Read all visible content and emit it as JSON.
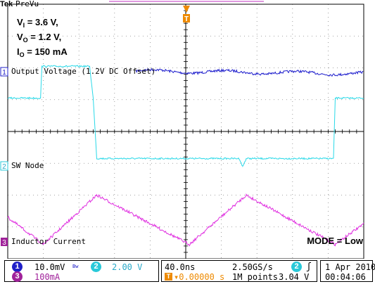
{
  "brand": {
    "logo": "Tek",
    "mode": "PreVu"
  },
  "conditions": {
    "vi": {
      "sym": "V",
      "sub": "I",
      "rest": " = 3.6 V,"
    },
    "vo": {
      "sym": "V",
      "sub": "O",
      "rest": " = 1.2 V,"
    },
    "io": {
      "sym": "I",
      "sub": "O",
      "rest": " = 150 mA"
    }
  },
  "mode_label": "MODE = Low",
  "channel_markers": {
    "ch1": "1",
    "ch2": "2",
    "ch3": "3",
    "trigger": "T"
  },
  "chart_data": {
    "type": "line",
    "grid": true,
    "grid_divisions": {
      "x": 10,
      "y": 8
    },
    "horizontal_scale": "40.0ns/div",
    "series": [
      {
        "name": "Output Voltage (1.2V DC Offset)",
        "channel": "1",
        "color": "#1a1acc",
        "description_values": {
          "level_div": 1.9,
          "ripple_div": 0.15
        }
      },
      {
        "name": "SW Node",
        "channel": "2",
        "color": "#29d9e8",
        "x_div": [
          0,
          0.92,
          0.96,
          2.3,
          2.4,
          2.5,
          6.5,
          6.6,
          6.7,
          9.15,
          9.2,
          10
        ],
        "y_div": [
          1.05,
          1.05,
          2.05,
          2.05,
          1.05,
          -0.85,
          -0.85,
          -1.1,
          -0.85,
          -0.85,
          1.05,
          1.05
        ]
      },
      {
        "name": "Inductor Current",
        "channel": "3",
        "color": "#e030e0",
        "x_div": [
          0,
          1.0,
          2.5,
          5.1,
          6.7,
          9.2,
          10
        ],
        "y_div": [
          -2.7,
          -3.55,
          -2.0,
          -3.55,
          -2.0,
          -3.55,
          -2.9
        ]
      }
    ]
  },
  "status_bar": {
    "ch1": {
      "num": "1",
      "scale": "10.0mV",
      "bw": "Bw"
    },
    "ch2": {
      "num": "2",
      "scale": "2.00 V"
    },
    "ch3": {
      "num": "3",
      "scale": "100mA"
    },
    "timebase": "40.0ns",
    "sample_rate": "2.50GS/s",
    "trigger_pos": "▾0.00000 s",
    "record_length": "1M points",
    "trigger": {
      "num": "2",
      "slope": "ʃ",
      "level": "3.04 V"
    },
    "date": "1 Apr  2010",
    "time": "00:04:06"
  },
  "colors": {
    "ch1": "#2020c8",
    "ch2": "#29c9d9",
    "ch3": "#a0229a",
    "trigger": "#ee8a00"
  }
}
